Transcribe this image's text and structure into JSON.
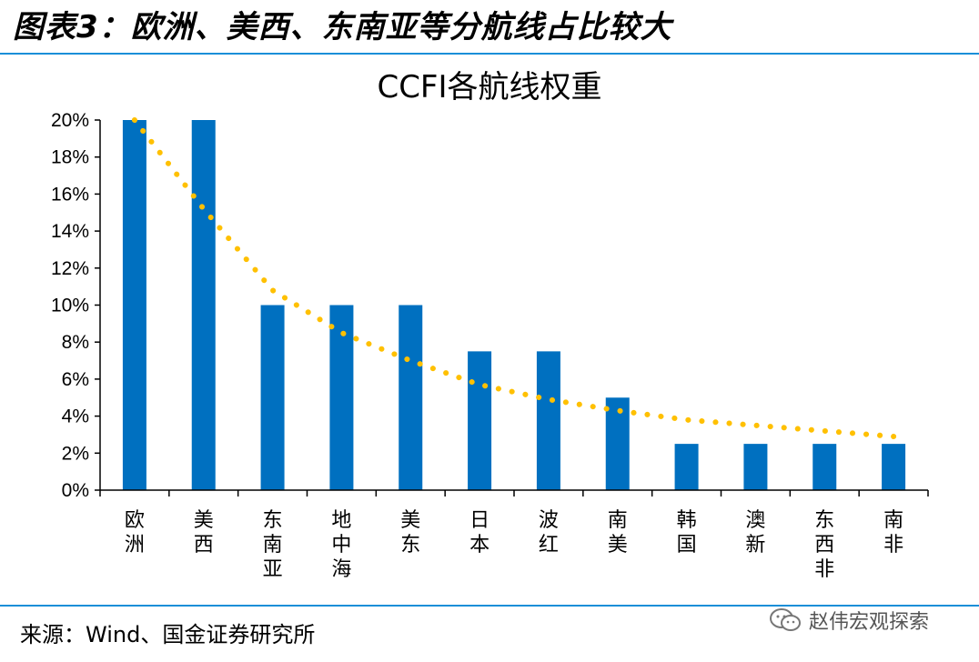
{
  "figure": {
    "title": "图表3：欧洲、美西、东南亚等分航线占比较大",
    "source": "来源：Wind、国金证券研究所",
    "watermark": "赵伟宏观探索"
  },
  "colors": {
    "bar": "#0070C0",
    "trend": "#FFC000",
    "rule": "#1a8fd8"
  },
  "chart_data": {
    "type": "bar",
    "title": "CCFI各航线权重",
    "categories": [
      "欧洲",
      "美西",
      "东南亚",
      "地中海",
      "美东",
      "日本",
      "波红",
      "南美",
      "韩国",
      "澳新",
      "东西非",
      "南非"
    ],
    "values": [
      20,
      20,
      10,
      10,
      10,
      7.5,
      7.5,
      5,
      2.5,
      2.5,
      2.5,
      2.5
    ],
    "trendline": {
      "style": "dotted",
      "kind": "power",
      "values": [
        20.5,
        15.2,
        10.8,
        8.5,
        7.0,
        5.7,
        4.9,
        4.3,
        3.8,
        3.5,
        3.2,
        2.9
      ]
    },
    "yticks": [
      "0%",
      "2%",
      "4%",
      "6%",
      "8%",
      "10%",
      "12%",
      "14%",
      "16%",
      "18%",
      "20%"
    ],
    "ylim": [
      0,
      20
    ],
    "grid": false,
    "legend": "none"
  }
}
